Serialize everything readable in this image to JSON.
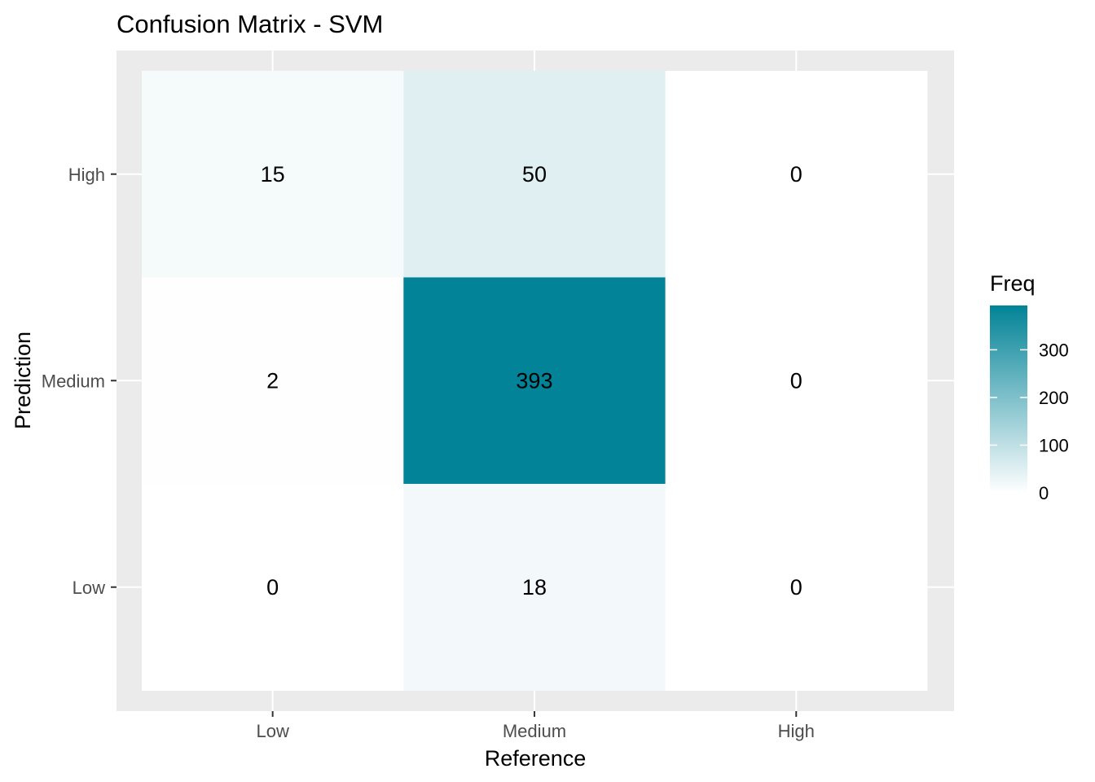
{
  "chart_data": {
    "type": "heatmap",
    "title": "Confusion Matrix - SVM",
    "xlabel": "Reference",
    "ylabel": "Prediction",
    "x_categories": [
      "Low",
      "Medium",
      "High"
    ],
    "y_categories": [
      "Low",
      "Medium",
      "High"
    ],
    "cells": [
      {
        "reference": "Low",
        "prediction": "High",
        "value": 15
      },
      {
        "reference": "Medium",
        "prediction": "High",
        "value": 50
      },
      {
        "reference": "High",
        "prediction": "High",
        "value": 0
      },
      {
        "reference": "Low",
        "prediction": "Medium",
        "value": 2
      },
      {
        "reference": "Medium",
        "prediction": "Medium",
        "value": 393
      },
      {
        "reference": "High",
        "prediction": "Medium",
        "value": 0
      },
      {
        "reference": "Low",
        "prediction": "Low",
        "value": 0
      },
      {
        "reference": "Medium",
        "prediction": "Low",
        "value": 18
      },
      {
        "reference": "High",
        "prediction": "Low",
        "value": 0
      }
    ],
    "legend": {
      "title": "Freq",
      "placement": "right",
      "ticks": [
        0,
        100,
        200,
        300
      ],
      "range": [
        0,
        393
      ]
    },
    "colors": {
      "low": "#ffffff",
      "high": "#028397",
      "panel_background": "#ebebeb",
      "grid": "#ffffff"
    }
  }
}
